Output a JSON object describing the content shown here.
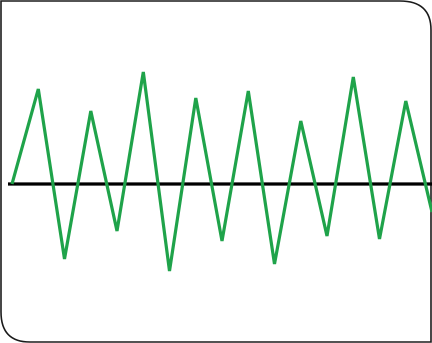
{
  "colors": {
    "background": "#ffffff",
    "border": "#1a1a1a",
    "baseline": "#000000",
    "waveform": "#1fa34a"
  },
  "waveform": {
    "description_none": "",
    "baseline_level": 0,
    "peaks": [
      0,
      95,
      -75,
      73,
      -47,
      112,
      -87,
      86,
      -57,
      93,
      -80,
      63,
      -52,
      107,
      -55,
      83,
      -28
    ]
  }
}
